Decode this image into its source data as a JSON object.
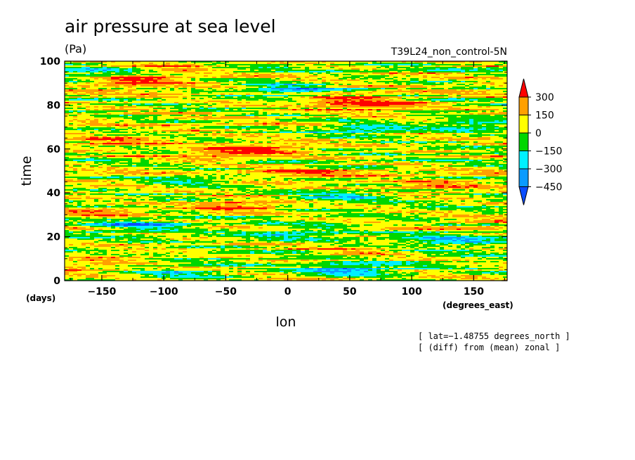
{
  "chart_data": {
    "type": "heatmap",
    "title": "air pressure at sea level",
    "units": "(Pa)",
    "run_name": "T39L24_non_control-5N",
    "xlabel": "lon",
    "xunits": "(degrees_east)",
    "ylabel": "time",
    "yunits": "(days)",
    "xlim": [
      -180,
      177
    ],
    "ylim": [
      0,
      100
    ],
    "xticks": [
      -150,
      -100,
      -50,
      0,
      50,
      100,
      150
    ],
    "yticks": [
      0,
      20,
      40,
      60,
      80,
      100
    ],
    "xtick_labels": [
      "−150",
      "−100",
      "−50",
      "0",
      "50",
      "100",
      "150"
    ],
    "ytick_labels": [
      "0",
      "20",
      "40",
      "60",
      "80",
      "100"
    ],
    "notes": [
      "[ lat=−1.48755 degrees_north ]",
      "[ (diff) from (mean) zonal ]"
    ],
    "colorbar": {
      "levels": [
        -450,
        -300,
        -150,
        0,
        150,
        300
      ],
      "labels": [
        "300",
        "150",
        "0",
        "−150",
        "−300",
        "−450"
      ],
      "colors": [
        "#0a4dff",
        "#0b9bff",
        "#00f0ff",
        "#00d700",
        "#ffff00",
        "#ffa000",
        "#ff0000"
      ]
    },
    "features": [
      {
        "lon": -125,
        "day": 91,
        "value": 320
      },
      {
        "lon": -90,
        "day": 97,
        "value": 200
      },
      {
        "lon": 70,
        "day": 80,
        "value": 310
      },
      {
        "lon": 40,
        "day": 82,
        "value": 210
      },
      {
        "lon": -20,
        "day": 60,
        "value": 300
      },
      {
        "lon": -60,
        "day": 57,
        "value": 220
      },
      {
        "lon": -140,
        "day": 63,
        "value": 180
      },
      {
        "lon": 10,
        "day": 49,
        "value": 170
      },
      {
        "lon": 120,
        "day": 43,
        "value": 190
      },
      {
        "lon": -40,
        "day": 34,
        "value": 320
      },
      {
        "lon": -150,
        "day": 31,
        "value": 220
      },
      {
        "lon": 165,
        "day": 27,
        "value": 180
      },
      {
        "lon": -140,
        "day": 11,
        "value": 160
      },
      {
        "lon": 60,
        "day": 13,
        "value": 150
      },
      {
        "lon": -170,
        "day": 6,
        "value": 190
      },
      {
        "lon": 0,
        "day": 87,
        "value": -380
      },
      {
        "lon": -160,
        "day": 94,
        "value": -250
      },
      {
        "lon": 60,
        "day": 69,
        "value": -310
      },
      {
        "lon": 150,
        "day": 71,
        "value": -280
      },
      {
        "lon": -80,
        "day": 46,
        "value": -200
      },
      {
        "lon": 45,
        "day": 39,
        "value": -230
      },
      {
        "lon": -120,
        "day": 25,
        "value": -340
      },
      {
        "lon": 10,
        "day": 22,
        "value": -240
      },
      {
        "lon": 130,
        "day": 18,
        "value": -300
      },
      {
        "lon": 50,
        "day": 5,
        "value": -400
      },
      {
        "lon": -90,
        "day": 3,
        "value": -220
      }
    ]
  }
}
